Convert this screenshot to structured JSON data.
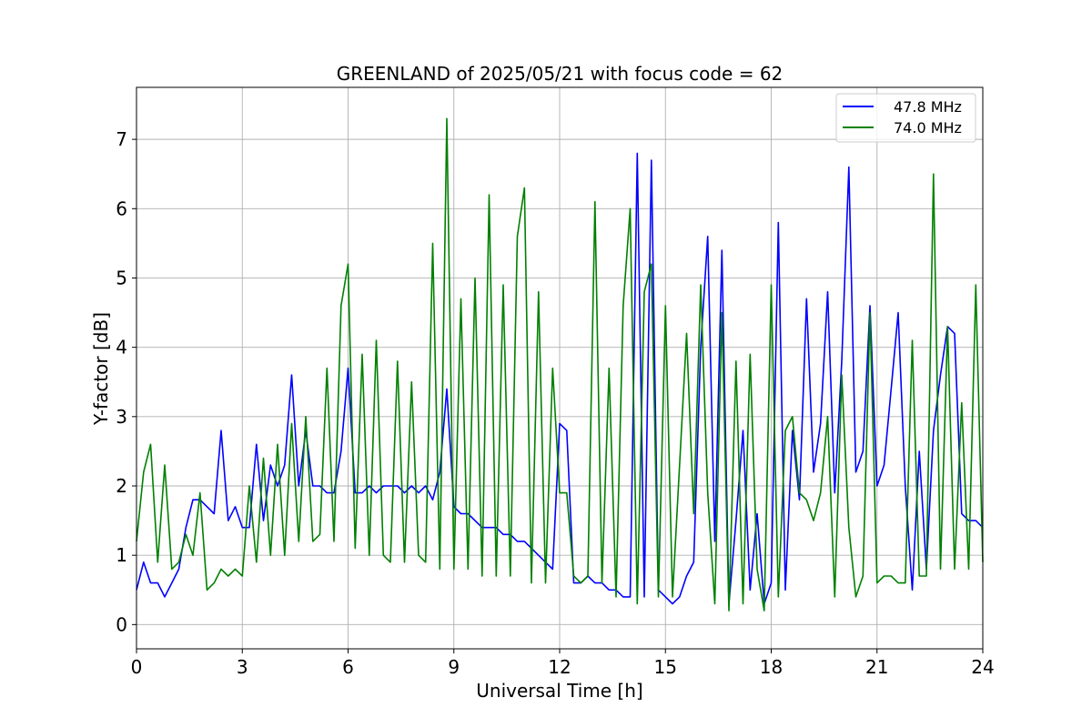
{
  "chart_data": {
    "type": "line",
    "title": "GREENLAND of 2025/05/21 with focus code = 62",
    "xlabel": "Universal Time [h]",
    "ylabel": "Y-factor [dB]",
    "xlim": [
      0,
      24
    ],
    "ylim": [
      -0.35,
      7.75
    ],
    "xticks": [
      0,
      3,
      6,
      9,
      12,
      15,
      18,
      21,
      24
    ],
    "xtick_labels": [
      "0",
      "3",
      "6",
      "9",
      "12",
      "15",
      "18",
      "21",
      "24"
    ],
    "yticks": [
      0,
      1,
      2,
      3,
      4,
      5,
      6,
      7
    ],
    "ytick_labels": [
      "0",
      "1",
      "2",
      "3",
      "4",
      "5",
      "6",
      "7"
    ],
    "grid": true,
    "legend_position": "top-right",
    "series": [
      {
        "name": "47.8 MHz",
        "color": "#0000ff",
        "x": [
          0.0,
          0.2,
          0.4,
          0.6,
          0.8,
          1.0,
          1.2,
          1.4,
          1.6,
          1.8,
          2.0,
          2.2,
          2.4,
          2.6,
          2.8,
          3.0,
          3.2,
          3.4,
          3.6,
          3.8,
          4.0,
          4.2,
          4.4,
          4.6,
          4.8,
          5.0,
          5.2,
          5.4,
          5.6,
          5.8,
          6.0,
          6.2,
          6.4,
          6.6,
          6.8,
          7.0,
          7.2,
          7.4,
          7.6,
          7.8,
          8.0,
          8.2,
          8.4,
          8.6,
          8.8,
          9.0,
          9.2,
          9.4,
          9.6,
          9.8,
          10.0,
          10.2,
          10.4,
          10.6,
          10.8,
          11.0,
          11.2,
          11.4,
          11.6,
          11.8,
          12.0,
          12.2,
          12.4,
          12.6,
          12.8,
          13.0,
          13.2,
          13.4,
          13.6,
          13.8,
          14.0,
          14.2,
          14.4,
          14.6,
          14.8,
          15.0,
          15.2,
          15.4,
          15.6,
          15.8,
          16.0,
          16.2,
          16.4,
          16.6,
          16.8,
          17.0,
          17.2,
          17.4,
          17.6,
          17.8,
          18.0,
          18.2,
          18.4,
          18.6,
          18.8,
          19.0,
          19.2,
          19.4,
          19.6,
          19.8,
          20.0,
          20.2,
          20.4,
          20.6,
          20.8,
          21.0,
          21.2,
          21.4,
          21.6,
          21.8,
          22.0,
          22.2,
          22.4,
          22.6,
          22.8,
          23.0,
          23.2,
          23.4,
          23.6,
          23.8,
          24.0
        ],
        "values": [
          0.5,
          0.9,
          0.6,
          0.6,
          0.4,
          0.6,
          0.8,
          1.4,
          1.8,
          1.8,
          1.7,
          1.6,
          2.8,
          1.5,
          1.7,
          1.4,
          1.4,
          2.6,
          1.5,
          2.3,
          2.0,
          2.3,
          3.6,
          2.0,
          2.8,
          2.0,
          2.0,
          1.9,
          1.9,
          2.5,
          3.7,
          1.9,
          1.9,
          2.0,
          1.9,
          2.0,
          2.0,
          2.0,
          1.9,
          2.0,
          1.9,
          2.0,
          1.8,
          2.2,
          3.4,
          1.7,
          1.6,
          1.6,
          1.5,
          1.4,
          1.4,
          1.4,
          1.3,
          1.3,
          1.2,
          1.2,
          1.1,
          1.0,
          0.9,
          0.8,
          2.9,
          2.8,
          0.6,
          0.6,
          0.7,
          0.6,
          0.6,
          0.5,
          0.5,
          0.4,
          0.4,
          6.8,
          0.4,
          6.7,
          0.5,
          0.4,
          0.3,
          0.4,
          0.7,
          0.9,
          4.0,
          5.6,
          1.2,
          5.4,
          0.3,
          1.5,
          2.8,
          0.5,
          1.6,
          0.3,
          0.6,
          5.8,
          0.5,
          2.8,
          1.8,
          4.7,
          2.2,
          2.9,
          4.8,
          1.9,
          3.8,
          6.6,
          2.2,
          2.5,
          4.6,
          2.0,
          2.3,
          3.4,
          4.5,
          2.0,
          0.5,
          2.5,
          0.8,
          2.8,
          3.6,
          4.3,
          4.2,
          1.6,
          1.5,
          1.5,
          1.4
        ]
      },
      {
        "name": "74.0 MHz",
        "color": "#008000",
        "x": [
          0.0,
          0.2,
          0.4,
          0.6,
          0.8,
          1.0,
          1.2,
          1.4,
          1.6,
          1.8,
          2.0,
          2.2,
          2.4,
          2.6,
          2.8,
          3.0,
          3.2,
          3.4,
          3.6,
          3.8,
          4.0,
          4.2,
          4.4,
          4.6,
          4.8,
          5.0,
          5.2,
          5.4,
          5.6,
          5.8,
          6.0,
          6.2,
          6.4,
          6.6,
          6.8,
          7.0,
          7.2,
          7.4,
          7.6,
          7.8,
          8.0,
          8.2,
          8.4,
          8.6,
          8.8,
          9.0,
          9.2,
          9.4,
          9.6,
          9.8,
          10.0,
          10.2,
          10.4,
          10.6,
          10.8,
          11.0,
          11.2,
          11.4,
          11.6,
          11.8,
          12.0,
          12.2,
          12.4,
          12.6,
          12.8,
          13.0,
          13.2,
          13.4,
          13.6,
          13.8,
          14.0,
          14.2,
          14.4,
          14.6,
          14.8,
          15.0,
          15.2,
          15.4,
          15.6,
          15.8,
          16.0,
          16.2,
          16.4,
          16.6,
          16.8,
          17.0,
          17.2,
          17.4,
          17.6,
          17.8,
          18.0,
          18.2,
          18.4,
          18.6,
          18.8,
          19.0,
          19.2,
          19.4,
          19.6,
          19.8,
          20.0,
          20.2,
          20.4,
          20.6,
          20.8,
          21.0,
          21.2,
          21.4,
          21.6,
          21.8,
          22.0,
          22.2,
          22.4,
          22.6,
          22.8,
          23.0,
          23.2,
          23.4,
          23.6,
          23.8,
          24.0
        ],
        "values": [
          1.2,
          2.2,
          2.6,
          0.9,
          2.3,
          0.8,
          0.9,
          1.3,
          1.0,
          1.9,
          0.5,
          0.6,
          0.8,
          0.7,
          0.8,
          0.7,
          2.0,
          0.9,
          2.4,
          1.0,
          2.6,
          1.0,
          2.9,
          1.2,
          3.0,
          1.2,
          1.3,
          3.7,
          1.2,
          4.6,
          5.2,
          1.1,
          3.9,
          1.0,
          4.1,
          1.0,
          0.9,
          3.8,
          0.9,
          3.5,
          1.0,
          0.9,
          5.5,
          0.8,
          7.3,
          0.8,
          4.7,
          0.8,
          5.0,
          0.7,
          6.2,
          0.7,
          4.9,
          0.7,
          5.6,
          6.3,
          0.6,
          4.8,
          0.6,
          3.7,
          1.9,
          1.9,
          0.7,
          0.6,
          0.7,
          6.1,
          0.6,
          3.7,
          0.4,
          4.6,
          6.0,
          0.3,
          4.8,
          5.2,
          0.4,
          4.6,
          0.4,
          2.3,
          4.2,
          1.6,
          4.9,
          1.9,
          0.3,
          4.5,
          0.2,
          3.8,
          0.3,
          3.9,
          0.8,
          0.2,
          4.9,
          0.4,
          2.8,
          3.0,
          1.9,
          1.8,
          1.5,
          1.9,
          3.0,
          0.4,
          3.6,
          1.4,
          0.4,
          0.7,
          4.5,
          0.6,
          0.7,
          0.7,
          0.6,
          0.6,
          4.1,
          0.7,
          0.7,
          6.5,
          0.8,
          4.3,
          0.8,
          3.2,
          0.8,
          4.9,
          0.9
        ]
      }
    ]
  }
}
